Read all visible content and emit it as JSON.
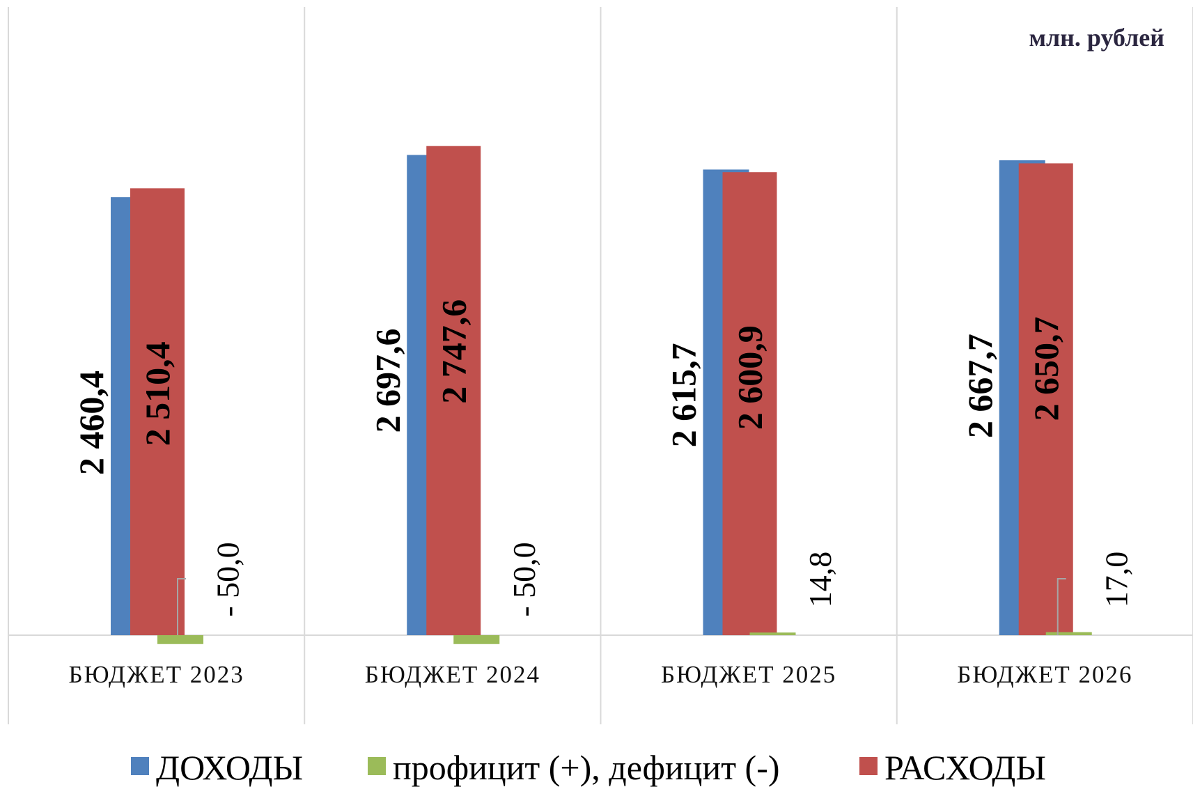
{
  "chart_data": {
    "type": "bar",
    "unit_label": "млн. рублей",
    "categories": [
      "БЮДЖЕТ 2023",
      "БЮДЖЕТ 2024",
      "БЮДЖЕТ 2025",
      "БЮДЖЕТ 2026"
    ],
    "series": [
      {
        "name": "ДОХОДЫ",
        "values": [
          2460.4,
          2697.6,
          2615.7,
          2667.7
        ],
        "labels": [
          "2 460,4",
          "2 697,6",
          "2 615,7",
          "2 667,7"
        ],
        "color": "#4f81bd"
      },
      {
        "name": "РАСХОДЫ",
        "values": [
          2510.4,
          2747.6,
          2600.9,
          2650.7
        ],
        "labels": [
          "2 510,4",
          "2 747,6",
          "2 600,9",
          "2 650,7"
        ],
        "color": "#c0504d"
      },
      {
        "name": "профицит (+), дефицит (-)",
        "values": [
          -50.0,
          -50.0,
          14.8,
          17.0
        ],
        "labels": [
          "- 50,0",
          "- 50,0",
          "14,8",
          "17,0"
        ],
        "color": "#9bbb59"
      }
    ],
    "legend": [
      "ДОХОДЫ",
      "профицит (+), дефицит (-)",
      "РАСХОДЫ"
    ],
    "legend_position": "bottom",
    "ylim": [
      -500,
      3500
    ],
    "grid": false
  }
}
